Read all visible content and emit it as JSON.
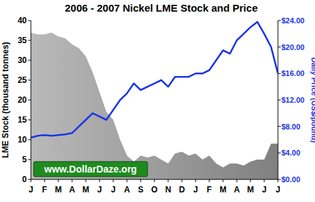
{
  "chart_data": {
    "type": "line",
    "title": "2006 - 2007 Nickel LME Stock and Price",
    "y_label": "LME Stock (thousand tonnes)",
    "y2_label": "Daily Price (US$/pound)",
    "annotation": "www.DollarDaze.org",
    "categories": [
      "J",
      null,
      "F",
      null,
      "M",
      null,
      "A",
      null,
      "M",
      null,
      "J",
      null,
      "J",
      null,
      "A",
      null,
      "S",
      null,
      "O",
      null,
      "N",
      null,
      "D",
      null,
      "J",
      null,
      "F",
      null,
      "M",
      null,
      "A",
      null,
      "M",
      null,
      "J",
      null,
      "J"
    ],
    "series": [
      {
        "name": "LME Stock",
        "type": "area",
        "color": "#808080",
        "values": [
          37,
          36.5,
          36.5,
          37,
          36,
          35.5,
          34,
          33,
          31,
          27,
          22,
          17,
          15,
          10,
          6,
          4.5,
          6,
          5.5,
          6,
          5,
          4,
          6.5,
          7,
          6,
          6.5,
          5,
          6,
          4,
          3,
          4,
          4,
          3.5,
          4.5,
          5,
          5,
          9,
          9
        ]
      },
      {
        "name": "Daily Price",
        "type": "line",
        "color": "#1a33e6",
        "axis": "y2",
        "values": [
          6.3,
          6.6,
          6.7,
          6.6,
          6.7,
          6.8,
          7.0,
          8.0,
          9.0,
          10.0,
          9.5,
          9.0,
          10.5,
          12.0,
          13.0,
          14.5,
          13.5,
          14.0,
          14.5,
          15.0,
          14.0,
          15.5,
          15.5,
          15.5,
          16.0,
          16.0,
          16.5,
          18.0,
          19.5,
          19.0,
          21.0,
          22.0,
          23.0,
          23.8,
          22.0,
          20.0,
          16.0
        ]
      }
    ],
    "ylim": [
      0,
      40
    ],
    "yticks": [
      0,
      5,
      10,
      15,
      20,
      25,
      30,
      35,
      40
    ],
    "y2lim": [
      0,
      24
    ],
    "y2ticks": [
      {
        "value": 0,
        "label": "$0.00"
      },
      {
        "value": 4,
        "label": "$4.00"
      },
      {
        "value": 8,
        "label": "$8.00"
      },
      {
        "value": 12,
        "label": "$12.00"
      },
      {
        "value": 16,
        "label": "$16.00"
      },
      {
        "value": 20,
        "label": "$20.00"
      },
      {
        "value": 24,
        "label": "$24.00"
      }
    ],
    "grid": false
  }
}
